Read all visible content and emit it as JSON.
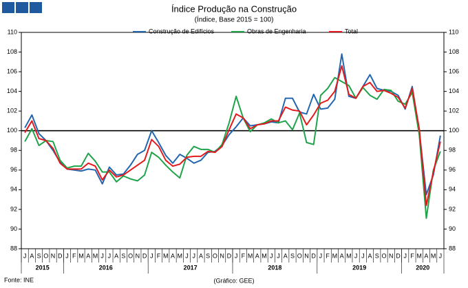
{
  "chart_data": {
    "type": "line",
    "title": "Índice Produção na Construção",
    "subtitle": "(Índice, Base 2015 = 100)",
    "source": "Fonte: INE",
    "credit": "(Gráfico: GEE)",
    "categories": [
      "J",
      "A",
      "S",
      "O",
      "N",
      "D",
      "J",
      "F",
      "M",
      "A",
      "M",
      "J",
      "J",
      "A",
      "S",
      "O",
      "N",
      "D",
      "J",
      "F",
      "M",
      "A",
      "M",
      "J",
      "J",
      "A",
      "S",
      "O",
      "N",
      "D",
      "J",
      "F",
      "M",
      "A",
      "M",
      "J",
      "J",
      "A",
      "S",
      "O",
      "N",
      "D",
      "J",
      "F",
      "M",
      "A",
      "M",
      "J",
      "J",
      "A",
      "S",
      "O",
      "N",
      "D",
      "J",
      "F",
      "M",
      "A",
      "M",
      "J"
    ],
    "year_labels": [
      "2015",
      "2016",
      "2017",
      "2018",
      "2019",
      "2020"
    ],
    "series": [
      {
        "name": "Construção de Edifícios",
        "color": "#2266b0",
        "values": [
          100.3,
          101.6,
          99.7,
          99.0,
          98.0,
          96.8,
          96.1,
          96.0,
          95.9,
          96.1,
          96.0,
          94.6,
          96.3,
          95.5,
          95.6,
          96.5,
          97.6,
          98.0,
          100.0,
          98.8,
          97.5,
          96.7,
          97.6,
          97.2,
          96.7,
          97.0,
          97.8,
          97.9,
          98.5,
          99.6,
          100.4,
          101.3,
          100.5,
          100.6,
          100.7,
          100.9,
          100.8,
          103.3,
          103.3,
          101.9,
          101.7,
          103.7,
          102.2,
          102.3,
          103.2,
          107.8,
          103.5,
          103.3,
          104.5,
          105.7,
          104.3,
          104.1,
          104.0,
          103.6,
          102.2,
          104.5,
          100.0,
          93.5,
          95.5,
          99.5
        ]
      },
      {
        "name": "Obras de Engenharia",
        "color": "#1fa34a",
        "values": [
          98.9,
          100.2,
          98.5,
          99.0,
          98.9,
          97.0,
          96.2,
          96.4,
          96.4,
          97.7,
          96.9,
          95.8,
          95.8,
          94.8,
          95.4,
          95.1,
          94.9,
          95.5,
          97.8,
          97.3,
          96.5,
          95.8,
          95.2,
          97.5,
          98.4,
          98.1,
          98.1,
          97.8,
          98.6,
          100.8,
          103.5,
          101.3,
          99.9,
          100.6,
          100.8,
          101.2,
          100.8,
          101.0,
          100.1,
          101.8,
          98.8,
          98.6,
          103.6,
          104.3,
          105.4,
          105.0,
          104.6,
          103.3,
          104.4,
          103.6,
          103.2,
          104.2,
          104.1,
          103.0,
          102.7,
          103.9,
          99.6,
          91.1,
          96.0,
          97.9
        ]
      },
      {
        "name": "Total",
        "color": "#e31a1c",
        "values": [
          99.8,
          101.0,
          99.2,
          99.0,
          98.2,
          96.7,
          96.1,
          96.1,
          96.1,
          96.7,
          96.4,
          95.0,
          96.0,
          95.3,
          95.5,
          96.0,
          96.5,
          97.0,
          99.1,
          98.4,
          97.0,
          96.4,
          96.6,
          97.3,
          97.4,
          97.4,
          97.9,
          97.8,
          98.4,
          100.1,
          101.7,
          101.3,
          100.2,
          100.6,
          100.7,
          101.0,
          101.0,
          102.4,
          102.1,
          102.0,
          100.6,
          101.6,
          102.8,
          103.1,
          104.0,
          106.6,
          103.7,
          103.3,
          104.5,
          104.9,
          104.0,
          104.1,
          103.8,
          103.4,
          102.3,
          104.3,
          100.2,
          92.4,
          95.8,
          98.9
        ]
      }
    ],
    "ylim": [
      88,
      110
    ],
    "yticks": [
      88,
      90,
      92,
      94,
      96,
      98,
      100,
      102,
      104,
      106,
      108,
      110
    ],
    "reference_line": 100,
    "legend": "top"
  }
}
